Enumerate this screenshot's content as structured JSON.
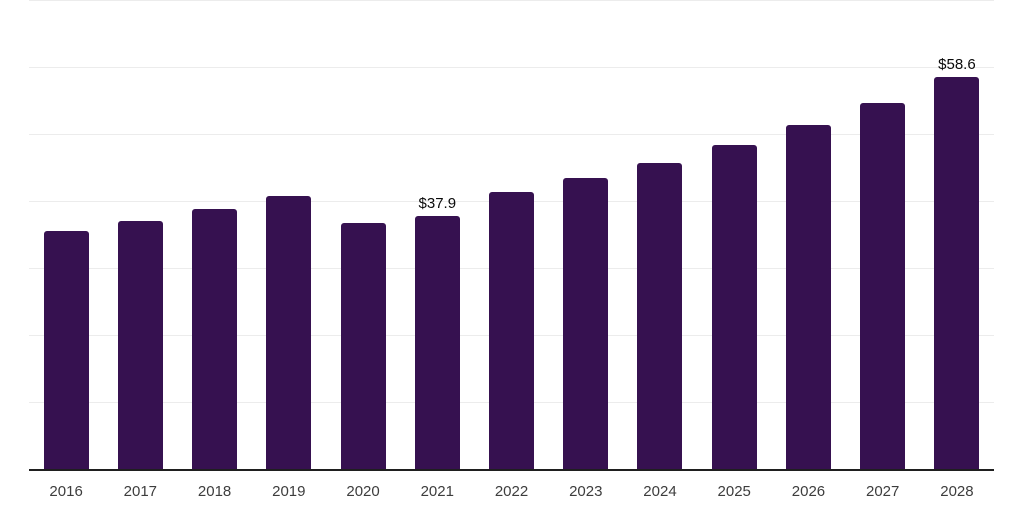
{
  "chart_data": {
    "type": "bar",
    "title": "",
    "xlabel": "",
    "ylabel": "",
    "categories": [
      "2016",
      "2017",
      "2018",
      "2019",
      "2020",
      "2021",
      "2022",
      "2023",
      "2024",
      "2025",
      "2026",
      "2027",
      "2028"
    ],
    "values": [
      35.7,
      37.2,
      38.9,
      40.9,
      36.9,
      37.9,
      41.5,
      43.6,
      45.9,
      48.5,
      51.5,
      54.8,
      58.6
    ],
    "point_labels": [
      null,
      null,
      null,
      null,
      null,
      "$37.9",
      null,
      null,
      null,
      null,
      null,
      null,
      "$58.6"
    ],
    "ylim": [
      0,
      70
    ],
    "grid_step": 10,
    "grid": "horizontal",
    "legend": "none",
    "y_tick_labels_visible": false,
    "colors": {
      "bar": "#361150",
      "gridline": "#ececec",
      "axis": "#1f1f1f",
      "x_tick_label": "#3d3d3d",
      "value_label": "#0a0a0a",
      "background": "#ffffff"
    }
  }
}
